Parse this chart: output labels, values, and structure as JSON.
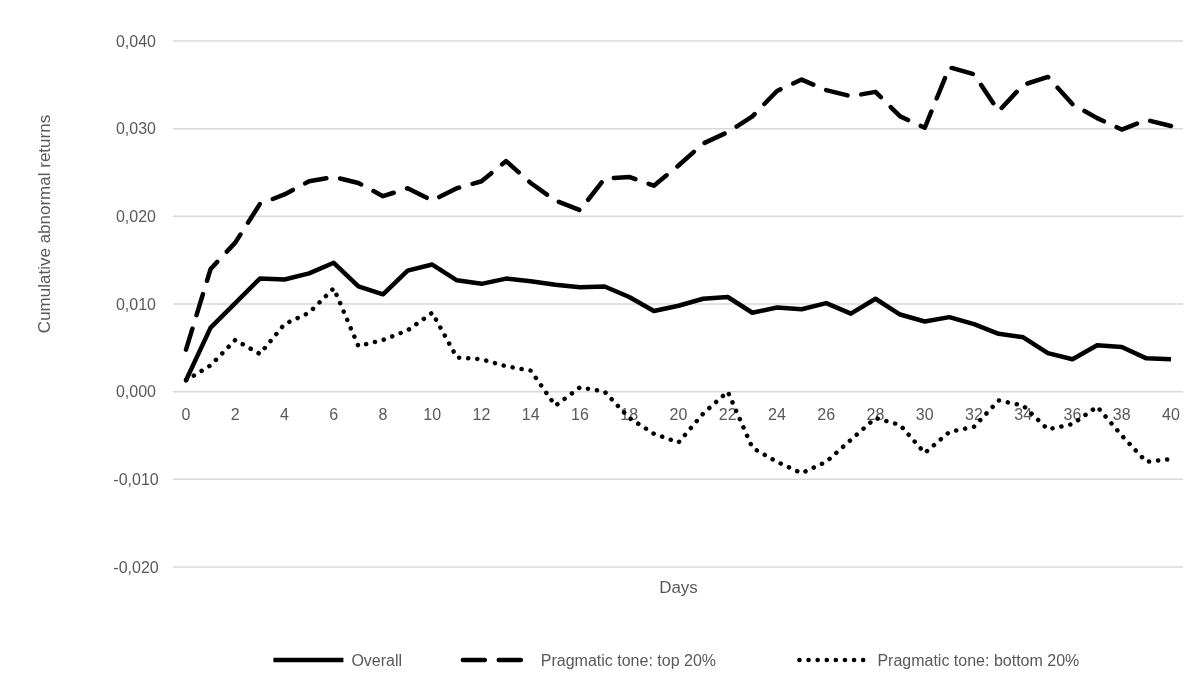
{
  "chart_data": {
    "type": "line",
    "xlabel": "Days",
    "ylabel": "Cumulative abnormal returns",
    "x": [
      0,
      1,
      2,
      3,
      4,
      5,
      6,
      7,
      8,
      9,
      10,
      11,
      12,
      13,
      14,
      15,
      16,
      17,
      18,
      19,
      20,
      21,
      22,
      23,
      24,
      25,
      26,
      27,
      28,
      29,
      30,
      31,
      32,
      33,
      34,
      35,
      36,
      37,
      38,
      39,
      40
    ],
    "xlim": [
      0,
      40
    ],
    "xticks": [
      0,
      2,
      4,
      6,
      8,
      10,
      12,
      14,
      16,
      18,
      20,
      22,
      24,
      26,
      28,
      30,
      32,
      34,
      36,
      38,
      40
    ],
    "ylim": [
      -0.02,
      0.04
    ],
    "yticks": [
      {
        "value": -0.02,
        "label": "-0,020"
      },
      {
        "value": -0.01,
        "label": "-0,010"
      },
      {
        "value": 0,
        "label": "0,000"
      },
      {
        "value": 0.01,
        "label": "0,010"
      },
      {
        "value": 0.02,
        "label": "0,020"
      },
      {
        "value": 0.03,
        "label": "0,030"
      },
      {
        "value": 0.04,
        "label": "0,040"
      }
    ],
    "grid": "y",
    "legend": "bottom",
    "marker": "none",
    "series": [
      {
        "name": "Overall",
        "color": "#000000",
        "line_style": "solid",
        "values": [
          0.0013,
          0.0073,
          0.0101,
          0.0129,
          0.0128,
          0.0135,
          0.0147,
          0.012,
          0.0111,
          0.0138,
          0.0145,
          0.0127,
          0.0123,
          0.0129,
          0.0126,
          0.0122,
          0.0119,
          0.012,
          0.0108,
          0.0092,
          0.0098,
          0.0106,
          0.0108,
          0.009,
          0.0096,
          0.0094,
          0.0101,
          0.0089,
          0.0106,
          0.0088,
          0.008,
          0.0085,
          0.0077,
          0.0066,
          0.0062,
          0.0044,
          0.0037,
          0.0053,
          0.0051,
          0.0038,
          0.0037
        ]
      },
      {
        "name": "Pragmatic tone: top 20%",
        "color": "#000000",
        "line_style": "dashed",
        "values": [
          0.0048,
          0.014,
          0.017,
          0.0214,
          0.0225,
          0.024,
          0.0245,
          0.0238,
          0.0223,
          0.0232,
          0.0218,
          0.0232,
          0.024,
          0.0263,
          0.0238,
          0.0218,
          0.0207,
          0.0243,
          0.0245,
          0.0235,
          0.0258,
          0.0283,
          0.0296,
          0.0314,
          0.0343,
          0.0356,
          0.0344,
          0.0337,
          0.0342,
          0.0314,
          0.0301,
          0.037,
          0.0362,
          0.032,
          0.035,
          0.0359,
          0.0328,
          0.0312,
          0.0299,
          0.031,
          0.0303
        ]
      },
      {
        "name": "Pragmatic tone: bottom 20%",
        "color": "#000000",
        "line_style": "dotted",
        "values": [
          0.0013,
          0.003,
          0.0059,
          0.0043,
          0.0077,
          0.009,
          0.0118,
          0.0052,
          0.0059,
          0.007,
          0.009,
          0.0039,
          0.0037,
          0.0029,
          0.0024,
          -0.0016,
          0.0005,
          0,
          -0.003,
          -0.0048,
          -0.0058,
          -0.0025,
          0,
          -0.0064,
          -0.008,
          -0.0093,
          -0.008,
          -0.0055,
          -0.003,
          -0.0038,
          -0.007,
          -0.0046,
          -0.004,
          -0.001,
          -0.0016,
          -0.0043,
          -0.0037,
          -0.0017,
          -0.005,
          -0.008,
          -0.0077
        ]
      }
    ]
  }
}
